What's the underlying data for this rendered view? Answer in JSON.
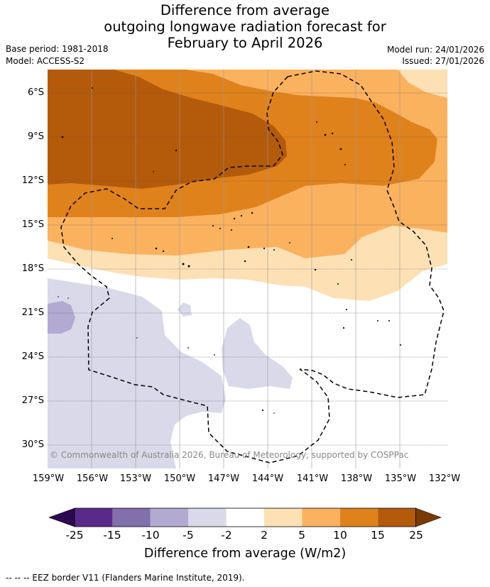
{
  "title": {
    "line1": "Difference from average",
    "line2": "outgoing longwave radiation forecast for",
    "line3": "February to April 2026"
  },
  "meta": {
    "base_period": "Base period: 1981-2018",
    "model": "Model: ACCESS-S2",
    "model_run": "Model run: 24/01/2026",
    "issued": "Issued: 27/01/2026"
  },
  "map": {
    "lat_labels": [
      "6°S",
      "9°S",
      "12°S",
      "15°S",
      "18°S",
      "21°S",
      "24°S",
      "27°S",
      "30°S"
    ],
    "lon_labels": [
      "159°W",
      "156°W",
      "153°W",
      "150°W",
      "147°W",
      "144°W",
      "141°W",
      "138°W",
      "135°W",
      "132°W"
    ],
    "copyright": "© Commonwealth of Australia 2026, Bureau of Meteorology, supported by COSPPac"
  },
  "colorbar": {
    "ticks": [
      "-25",
      "-15",
      "-10",
      "-5",
      "-2",
      "2",
      "5",
      "10",
      "15",
      "25"
    ],
    "colors": [
      "#5a2a8a",
      "#8170ab",
      "#b2aad1",
      "#d9d9ea",
      "#ffffff",
      "#fde0b4",
      "#fbb25f",
      "#e0821c",
      "#b45a0b"
    ],
    "under_color": "#2d0a50",
    "over_color": "#7a3a06",
    "label": "Difference from average (W/m2)"
  },
  "footnote": "--  --  -- EEZ border V11 (Flanders Marine Institute, 2019)."
}
